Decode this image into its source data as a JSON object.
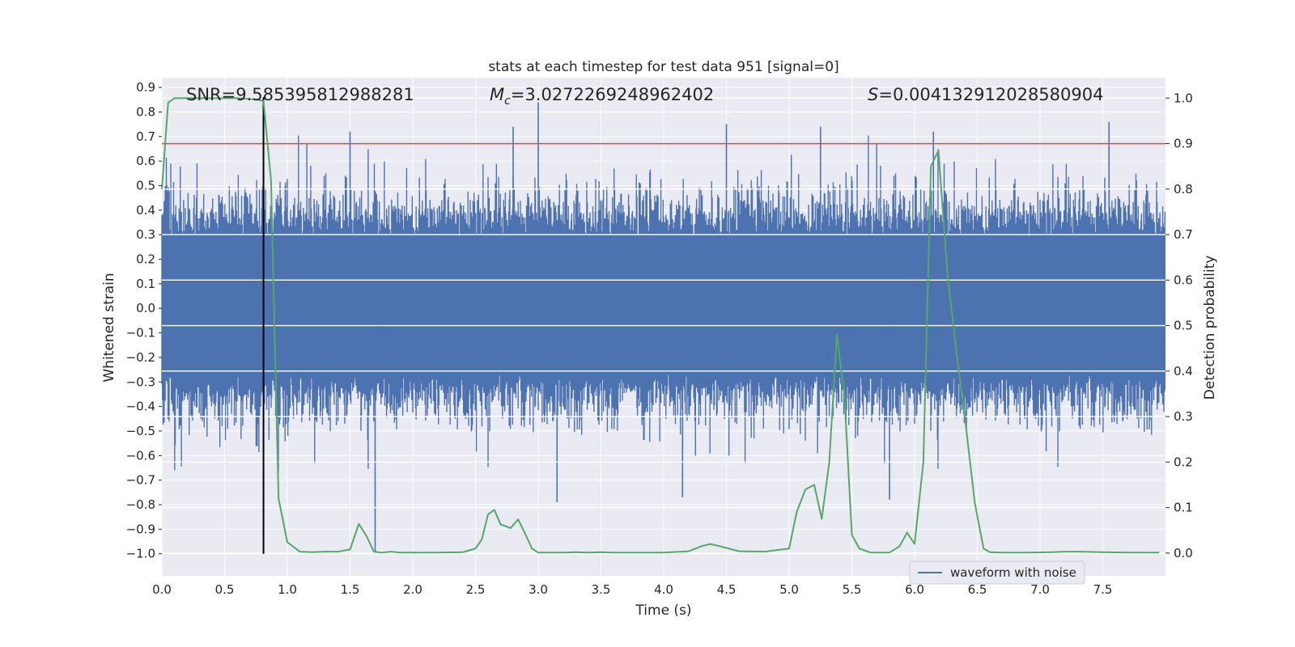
{
  "chart_data": {
    "type": "line",
    "title": "stats at each timestep for test data 951 [signal=0]",
    "xlabel": "Time (s)",
    "ylabel": "Whitened strain",
    "ylabel_right": "Detection probability",
    "xlim": [
      0.0,
      8.0
    ],
    "ylim": [
      -1.09,
      0.94
    ],
    "ylim_right": [
      -0.05,
      1.045
    ],
    "xticks": [
      "0.0",
      "0.5",
      "1.0",
      "1.5",
      "2.0",
      "2.5",
      "3.0",
      "3.5",
      "4.0",
      "4.5",
      "5.0",
      "5.5",
      "6.0",
      "6.5",
      "7.0",
      "7.5"
    ],
    "yticks": [
      "0.9",
      "0.8",
      "0.7",
      "0.6",
      "0.5",
      "0.4",
      "0.3",
      "0.2",
      "0.1",
      "0.0",
      "-0.1",
      "-0.2",
      "-0.3",
      "-0.4",
      "-0.5",
      "-0.6",
      "-0.7",
      "-0.8",
      "-0.9",
      "-1.0"
    ],
    "yticks_right": [
      "1.0",
      "0.9",
      "0.8",
      "0.7",
      "0.6",
      "0.5",
      "0.4",
      "0.3",
      "0.2",
      "0.1",
      "0.0"
    ],
    "annotations": {
      "snr": "SNR=9.585395812988281",
      "mc_symbol": "M",
      "mc_sub": "c",
      "mc_value": "=3.0272269248962402",
      "s_symbol": "S",
      "s_value": "=0.004132912028580904"
    },
    "legend": [
      "waveform with noise"
    ],
    "threshold": {
      "axis": "right",
      "value": 0.9
    },
    "marker_time": 0.81,
    "waveform_envelope": {
      "core_range": [
        -0.27,
        0.29
      ],
      "typical_peaks": [
        -0.45,
        0.45
      ],
      "spike_times": [
        0.81,
        1.5,
        1.7,
        2.8,
        3.0,
        3.15,
        4.15,
        4.5,
        5.25,
        5.8,
        6.15,
        7.55
      ],
      "spike_max": [
        0.85,
        0.72,
        -1.0,
        0.74,
        0.84,
        -0.79,
        -0.77,
        0.75,
        0.74,
        -0.78,
        0.72,
        0.76
      ]
    },
    "series": [
      {
        "name": "detection probability",
        "color": "#55a868",
        "x": [
          0.0,
          0.05,
          0.1,
          0.15,
          0.2,
          0.3,
          0.4,
          0.5,
          0.6,
          0.7,
          0.75,
          0.81,
          0.87,
          0.93,
          1.0,
          1.1,
          1.2,
          1.3,
          1.4,
          1.5,
          1.57,
          1.63,
          1.69,
          1.75,
          1.83,
          1.9,
          2.0,
          2.2,
          2.4,
          2.5,
          2.55,
          2.6,
          2.65,
          2.7,
          2.78,
          2.84,
          2.9,
          2.95,
          3.0,
          3.1,
          3.2,
          3.3,
          3.4,
          3.5,
          3.6,
          3.8,
          4.0,
          4.2,
          4.3,
          4.37,
          4.45,
          4.6,
          4.8,
          5.0,
          5.06,
          5.13,
          5.2,
          5.26,
          5.32,
          5.38,
          5.44,
          5.5,
          5.56,
          5.65,
          5.8,
          5.88,
          5.94,
          6.0,
          6.07,
          6.13,
          6.19,
          6.26,
          6.33,
          6.4,
          6.48,
          6.55,
          6.6,
          6.7,
          6.9,
          7.1,
          7.2,
          7.3,
          7.5,
          7.7,
          7.95
        ],
        "y": [
          0.8,
          0.99,
          1.0,
          1.0,
          1.0,
          1.0,
          1.0,
          1.0,
          1.0,
          0.998,
          0.998,
          0.993,
          0.82,
          0.12,
          0.024,
          0.003,
          0.002,
          0.003,
          0.003,
          0.008,
          0.064,
          0.038,
          0.003,
          0.001,
          0.003,
          0.001,
          0.001,
          0.001,
          0.002,
          0.01,
          0.03,
          0.085,
          0.095,
          0.063,
          0.055,
          0.074,
          0.04,
          0.01,
          0.001,
          0.001,
          0.001,
          0.002,
          0.001,
          0.002,
          0.001,
          0.001,
          0.001,
          0.004,
          0.015,
          0.02,
          0.015,
          0.004,
          0.003,
          0.01,
          0.09,
          0.14,
          0.15,
          0.075,
          0.2,
          0.48,
          0.35,
          0.04,
          0.01,
          0.001,
          0.001,
          0.015,
          0.045,
          0.02,
          0.2,
          0.85,
          0.885,
          0.62,
          0.45,
          0.3,
          0.11,
          0.01,
          0.002,
          0.001,
          0.001,
          0.002,
          0.003,
          0.003,
          0.002,
          0.001,
          0.001
        ]
      }
    ],
    "colors": {
      "background": "#eaeaf2",
      "grid": "#ffffff",
      "waveform": "#4c72b0",
      "probability": "#55a868",
      "threshold": "#c44e52",
      "marker": "#000000"
    }
  }
}
